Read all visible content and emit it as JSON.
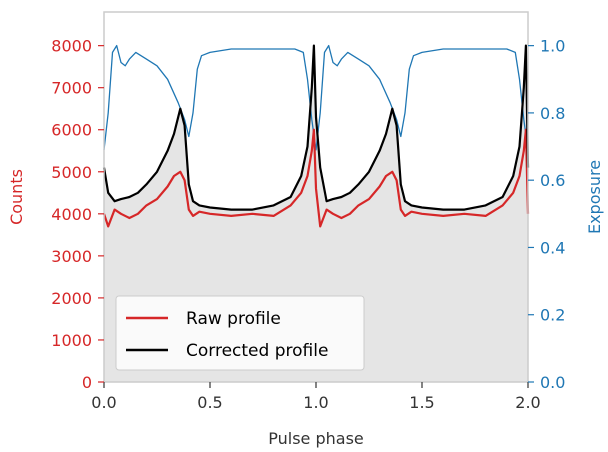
{
  "chart_data": {
    "type": "line",
    "xlabel": "Pulse phase",
    "ylabel_left": "Counts",
    "ylabel_right": "Exposure",
    "xlim": [
      0.0,
      2.0
    ],
    "ylim_left": [
      0,
      8800
    ],
    "ylim_right": [
      0.0,
      1.1
    ],
    "x_ticks": [
      "0.0",
      "0.5",
      "1.0",
      "1.5",
      "2.0"
    ],
    "y_left_ticks": [
      "0",
      "1000",
      "2000",
      "3000",
      "4000",
      "5000",
      "6000",
      "7000",
      "8000"
    ],
    "y_right_ticks": [
      "0.0",
      "0.2",
      "0.4",
      "0.6",
      "0.8",
      "1.0"
    ],
    "grid": false,
    "legend_position": "lower-left",
    "colors": {
      "raw": "#d62728",
      "corrected": "#000000",
      "exposure": "#1f77b4",
      "fill": "#e5e5e5",
      "left_axis_text": "#d62728",
      "right_axis_text": "#1f77b4",
      "frame": "#cccccc"
    },
    "series": [
      {
        "name": "Raw profile",
        "axis": "left",
        "x": [
          0.0,
          0.02,
          0.05,
          0.08,
          0.12,
          0.16,
          0.2,
          0.25,
          0.3,
          0.33,
          0.36,
          0.38,
          0.4,
          0.42,
          0.45,
          0.5,
          0.6,
          0.7,
          0.8,
          0.88,
          0.93,
          0.96,
          0.98,
          0.99,
          1.0,
          1.02,
          1.05,
          1.08,
          1.12,
          1.16,
          1.2,
          1.25,
          1.3,
          1.33,
          1.36,
          1.38,
          1.4,
          1.42,
          1.45,
          1.5,
          1.6,
          1.7,
          1.8,
          1.88,
          1.93,
          1.96,
          1.98,
          1.99,
          2.0
        ],
        "values": [
          4000,
          3700,
          4100,
          4000,
          3900,
          4000,
          4200,
          4350,
          4650,
          4900,
          5000,
          4800,
          4100,
          3950,
          4050,
          4000,
          3950,
          4000,
          3950,
          4200,
          4500,
          4900,
          5500,
          6000,
          4600,
          3700,
          4100,
          4000,
          3900,
          4000,
          4200,
          4350,
          4650,
          4900,
          5000,
          4800,
          4100,
          3950,
          4050,
          4000,
          3950,
          4000,
          3950,
          4200,
          4500,
          4900,
          5500,
          6000,
          4000
        ]
      },
      {
        "name": "Corrected profile",
        "axis": "left",
        "x": [
          0.0,
          0.02,
          0.05,
          0.08,
          0.12,
          0.16,
          0.2,
          0.25,
          0.3,
          0.33,
          0.36,
          0.38,
          0.4,
          0.42,
          0.45,
          0.5,
          0.6,
          0.7,
          0.8,
          0.88,
          0.93,
          0.96,
          0.98,
          0.99,
          1.0,
          1.02,
          1.05,
          1.08,
          1.12,
          1.16,
          1.2,
          1.25,
          1.3,
          1.33,
          1.36,
          1.38,
          1.4,
          1.42,
          1.45,
          1.5,
          1.6,
          1.7,
          1.8,
          1.88,
          1.93,
          1.96,
          1.98,
          1.99,
          2.0
        ],
        "values": [
          5100,
          4500,
          4300,
          4350,
          4400,
          4500,
          4700,
          5000,
          5500,
          5900,
          6500,
          6100,
          4700,
          4300,
          4200,
          4150,
          4100,
          4100,
          4200,
          4400,
          4900,
          5600,
          7000,
          8000,
          6300,
          5100,
          4300,
          4350,
          4400,
          4500,
          4700,
          5000,
          5500,
          5900,
          6500,
          6100,
          4700,
          4300,
          4200,
          4150,
          4100,
          4100,
          4200,
          4400,
          4900,
          5600,
          7000,
          8000,
          5100
        ]
      },
      {
        "name": "Exposure",
        "axis": "right",
        "x": [
          0.0,
          0.02,
          0.04,
          0.06,
          0.08,
          0.1,
          0.12,
          0.15,
          0.2,
          0.25,
          0.3,
          0.35,
          0.38,
          0.4,
          0.42,
          0.44,
          0.46,
          0.5,
          0.6,
          0.7,
          0.8,
          0.9,
          0.94,
          0.96,
          0.98,
          1.0,
          1.02,
          1.04,
          1.06,
          1.08,
          1.1,
          1.12,
          1.15,
          1.2,
          1.25,
          1.3,
          1.35,
          1.38,
          1.4,
          1.42,
          1.44,
          1.46,
          1.5,
          1.6,
          1.7,
          1.8,
          1.9,
          1.94,
          1.96,
          1.98,
          2.0
        ],
        "values": [
          0.69,
          0.8,
          0.98,
          1.0,
          0.95,
          0.94,
          0.96,
          0.98,
          0.96,
          0.94,
          0.9,
          0.83,
          0.78,
          0.73,
          0.8,
          0.93,
          0.97,
          0.98,
          0.99,
          0.99,
          0.99,
          0.99,
          0.98,
          0.9,
          0.78,
          0.69,
          0.8,
          0.98,
          1.0,
          0.95,
          0.94,
          0.96,
          0.98,
          0.96,
          0.94,
          0.9,
          0.83,
          0.78,
          0.73,
          0.8,
          0.93,
          0.97,
          0.98,
          0.99,
          0.99,
          0.99,
          0.99,
          0.98,
          0.9,
          0.78,
          0.69
        ]
      }
    ]
  }
}
